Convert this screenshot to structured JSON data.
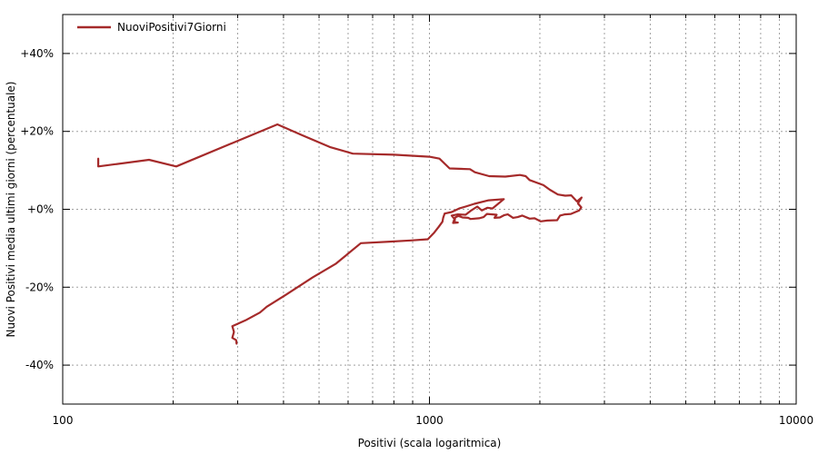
{
  "chart_data": {
    "type": "line",
    "title": "",
    "xlabel": "Positivi (scala logaritmica)",
    "ylabel": "Nuovi Positivi media ultimi giorni (percentuale)",
    "xscale": "log",
    "xlim": [
      100,
      10000
    ],
    "ylim": [
      -50,
      50
    ],
    "x_ticks": [
      {
        "value": 100,
        "label": "100"
      },
      {
        "value": 1000,
        "label": "1000"
      },
      {
        "value": 10000,
        "label": "10000"
      }
    ],
    "y_ticks": [
      {
        "value": 40,
        "label": "+40%"
      },
      {
        "value": 20,
        "label": "+20%"
      },
      {
        "value": 0,
        "label": "+0%"
      },
      {
        "value": -20,
        "label": "-20%"
      },
      {
        "value": -40,
        "label": "-40%"
      }
    ],
    "grid": true,
    "legend": {
      "position": "top-left"
    },
    "series": [
      {
        "name": "NuoviPositivi7Giorni",
        "color": "#a52a2a",
        "points": [
          [
            125,
            13
          ],
          [
            125,
            11
          ],
          [
            172,
            12.7
          ],
          [
            204,
            11
          ],
          [
            290,
            17
          ],
          [
            385,
            21.8
          ],
          [
            450,
            19
          ],
          [
            535,
            16
          ],
          [
            618,
            14.3
          ],
          [
            800,
            14
          ],
          [
            1000,
            13.5
          ],
          [
            1065,
            13
          ],
          [
            1135,
            10.5
          ],
          [
            1290,
            10.3
          ],
          [
            1330,
            9.5
          ],
          [
            1455,
            8.5
          ],
          [
            1610,
            8.4
          ],
          [
            1765,
            8.8
          ],
          [
            1830,
            8.5
          ],
          [
            1875,
            7.5
          ],
          [
            2045,
            6.2
          ],
          [
            2130,
            5
          ],
          [
            2240,
            3.8
          ],
          [
            2345,
            3.5
          ],
          [
            2435,
            3.6
          ],
          [
            2525,
            2
          ],
          [
            2600,
            3
          ],
          [
            2540,
            1.5
          ],
          [
            2595,
            0.5
          ],
          [
            2560,
            -0.3
          ],
          [
            2430,
            -1.2
          ],
          [
            2340,
            -1.3
          ],
          [
            2270,
            -1.6
          ],
          [
            2230,
            -2.8
          ],
          [
            2095,
            -2.9
          ],
          [
            2010,
            -3.1
          ],
          [
            1935,
            -2.3
          ],
          [
            1875,
            -2.4
          ],
          [
            1790,
            -1.6
          ],
          [
            1740,
            -2
          ],
          [
            1690,
            -2.2
          ],
          [
            1635,
            -1.3
          ],
          [
            1600,
            -1.5
          ],
          [
            1555,
            -2.1
          ],
          [
            1505,
            -2.2
          ],
          [
            1525,
            -1.4
          ],
          [
            1435,
            -1.2
          ],
          [
            1405,
            -2
          ],
          [
            1365,
            -2.3
          ],
          [
            1295,
            -2.5
          ],
          [
            1275,
            -2.2
          ],
          [
            1230,
            -2.1
          ],
          [
            1200,
            -1.7
          ],
          [
            1175,
            -2.1
          ],
          [
            1170,
            -3.3
          ],
          [
            1195,
            -3.4
          ],
          [
            1160,
            -3.5
          ],
          [
            1170,
            -2.5
          ],
          [
            1150,
            -1.6
          ],
          [
            1195,
            -1.3
          ],
          [
            1255,
            -1.4
          ],
          [
            1295,
            -0.4
          ],
          [
            1350,
            0.7
          ],
          [
            1390,
            -0.3
          ],
          [
            1440,
            0.4
          ],
          [
            1485,
            0.2
          ],
          [
            1595,
            2.6
          ],
          [
            1450,
            2.3
          ],
          [
            1325,
            1.4
          ],
          [
            1255,
            0.7
          ],
          [
            1205,
            0.2
          ],
          [
            1150,
            -0.7
          ],
          [
            1100,
            -1.1
          ],
          [
            1090,
            -2.2
          ],
          [
            1085,
            -3.2
          ],
          [
            1060,
            -4.5
          ],
          [
            1030,
            -6
          ],
          [
            990,
            -7.7
          ],
          [
            890,
            -8
          ],
          [
            780,
            -8.3
          ],
          [
            650,
            -8.7
          ],
          [
            555,
            -14
          ],
          [
            480,
            -17.5
          ],
          [
            405,
            -22
          ],
          [
            360,
            -25
          ],
          [
            345,
            -26.5
          ],
          [
            315,
            -28.5
          ],
          [
            290,
            -30
          ],
          [
            293,
            -31.5
          ],
          [
            290,
            -33
          ],
          [
            297,
            -33.6
          ],
          [
            298,
            -34.5
          ]
        ]
      }
    ]
  }
}
